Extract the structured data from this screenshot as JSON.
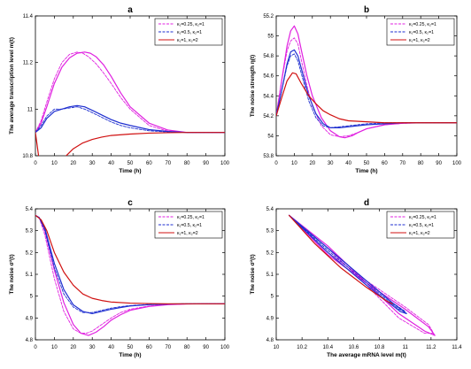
{
  "figure": {
    "legend_labels": [
      "κ₁=0.25, κ₂=1",
      "κ₁=0.5, κ₂=1",
      "κ₁=1, κ₂=2"
    ],
    "colors": {
      "magenta": "#e020e0",
      "blue": "#1f2fd0",
      "red": "#d01010"
    }
  },
  "chart_data": [
    {
      "type": "line",
      "panel_label": "a",
      "xlabel": "Time (h)",
      "ylabel": "The average transcription level m(t)",
      "xlim": [
        0,
        100
      ],
      "ylim": [
        10.8,
        11.4
      ],
      "xticks": [
        0,
        10,
        20,
        30,
        40,
        50,
        60,
        70,
        80,
        90,
        100
      ],
      "yticks": [
        10.8,
        11,
        11.2,
        11.4
      ],
      "ytick_labels": [
        "10.8",
        "11",
        "11.2",
        "11.4"
      ],
      "legend": "top-right",
      "series": [
        {
          "name": "κ₁=0.25, κ₂=1",
          "color": "magenta",
          "style": "dashed",
          "x": [
            0,
            3,
            6,
            10,
            14,
            18,
            22,
            25,
            28,
            32,
            36,
            40,
            45,
            50,
            60,
            70,
            80,
            90,
            100
          ],
          "y": [
            10.9,
            10.95,
            11.03,
            11.13,
            11.2,
            11.235,
            11.245,
            11.24,
            11.225,
            11.195,
            11.155,
            11.11,
            11.05,
            11.0,
            10.93,
            10.905,
            10.9,
            10.9,
            10.9
          ]
        },
        {
          "name": "κ₁=0.25, κ₂=1",
          "color": "magenta",
          "style": "solid",
          "x": [
            0,
            3,
            6,
            10,
            14,
            18,
            22,
            26,
            29,
            32,
            36,
            40,
            45,
            50,
            60,
            70,
            80,
            90,
            100
          ],
          "y": [
            10.9,
            10.94,
            11.01,
            11.11,
            11.18,
            11.22,
            11.24,
            11.245,
            11.24,
            11.225,
            11.19,
            11.14,
            11.07,
            11.01,
            10.94,
            10.91,
            10.9,
            10.9,
            10.9
          ]
        },
        {
          "name": "κ₁=0.5, κ₂=1",
          "color": "blue",
          "style": "dashed",
          "x": [
            0,
            3,
            6,
            10,
            14,
            18,
            22,
            26,
            30,
            35,
            40,
            45,
            50,
            60,
            70,
            80,
            90,
            100
          ],
          "y": [
            10.9,
            10.93,
            10.97,
            11.0,
            11.0,
            11.005,
            11.01,
            11.0,
            10.985,
            10.965,
            10.945,
            10.93,
            10.92,
            10.907,
            10.902,
            10.9,
            10.9,
            10.9
          ]
        },
        {
          "name": "κ₁=0.5, κ₂=1",
          "color": "blue",
          "style": "solid",
          "x": [
            0,
            3,
            6,
            10,
            14,
            18,
            22,
            26,
            30,
            35,
            40,
            45,
            50,
            60,
            70,
            80,
            90,
            100
          ],
          "y": [
            10.9,
            10.92,
            10.96,
            10.99,
            11.0,
            11.01,
            11.015,
            11.01,
            10.995,
            10.975,
            10.955,
            10.94,
            10.93,
            10.912,
            10.904,
            10.9,
            10.9,
            10.9
          ]
        },
        {
          "name": "κ₁=1, κ₂=2",
          "color": "red",
          "style": "solid",
          "x": [
            0,
            5,
            10,
            15,
            20,
            25,
            30,
            35,
            40,
            50,
            60,
            70,
            80,
            90,
            100
          ],
          "y": [
            10.9,
            10.6,
            10.72,
            10.79,
            10.83,
            10.855,
            10.87,
            10.88,
            10.887,
            10.893,
            10.897,
            10.899,
            10.9,
            10.9,
            10.9
          ]
        }
      ]
    },
    {
      "type": "line",
      "panel_label": "b",
      "xlabel": "Time (h)",
      "ylabel": "The noise strength η(t)",
      "xlim": [
        0,
        100
      ],
      "ylim": [
        53.8,
        55.2
      ],
      "xticks": [
        0,
        10,
        20,
        30,
        40,
        50,
        60,
        70,
        80,
        90,
        100
      ],
      "yticks": [
        53.8,
        54,
        54.2,
        54.4,
        54.6,
        54.8,
        55,
        55.2
      ],
      "ytick_labels": [
        "53.8",
        "54",
        "54.2",
        "54.4",
        "54.6",
        "54.8",
        "55",
        "55.2"
      ],
      "legend": "top-right",
      "series": [
        {
          "name": "κ₁=0.25, κ₂=1",
          "color": "magenta",
          "style": "dashed",
          "x": [
            0,
            3,
            6,
            8,
            10,
            12,
            14,
            17,
            20,
            25,
            30,
            35,
            40,
            45,
            50,
            60,
            70,
            80,
            90,
            100
          ],
          "y": [
            54.2,
            54.55,
            54.85,
            54.95,
            54.98,
            54.92,
            54.75,
            54.5,
            54.3,
            54.1,
            54.01,
            53.99,
            54.0,
            54.03,
            54.07,
            54.11,
            54.125,
            54.13,
            54.13,
            54.13
          ]
        },
        {
          "name": "κ₁=0.25, κ₂=1",
          "color": "magenta",
          "style": "solid",
          "x": [
            0,
            3,
            6,
            8,
            10,
            12,
            14,
            17,
            20,
            25,
            30,
            35,
            38,
            42,
            45,
            50,
            60,
            70,
            80,
            90,
            100
          ],
          "y": [
            54.2,
            54.55,
            54.9,
            55.05,
            55.1,
            55.02,
            54.85,
            54.6,
            54.4,
            54.18,
            54.05,
            53.99,
            53.98,
            54.0,
            54.03,
            54.07,
            54.11,
            54.125,
            54.13,
            54.13,
            54.13
          ]
        },
        {
          "name": "κ₁=0.5, κ₂=1",
          "color": "blue",
          "style": "dashed",
          "x": [
            0,
            3,
            6,
            8,
            10,
            12,
            15,
            18,
            22,
            26,
            30,
            35,
            40,
            50,
            60,
            70,
            80,
            90,
            100
          ],
          "y": [
            54.2,
            54.45,
            54.7,
            54.8,
            54.82,
            54.75,
            54.55,
            54.35,
            54.18,
            54.1,
            54.08,
            54.09,
            54.1,
            54.12,
            54.13,
            54.13,
            54.13,
            54.13,
            54.13
          ]
        },
        {
          "name": "κ₁=0.5, κ₂=1",
          "color": "blue",
          "style": "solid",
          "x": [
            0,
            3,
            6,
            8,
            10,
            12,
            15,
            18,
            22,
            26,
            30,
            35,
            40,
            50,
            60,
            70,
            80,
            90,
            100
          ],
          "y": [
            54.2,
            54.45,
            54.72,
            54.84,
            54.86,
            54.8,
            54.6,
            54.4,
            54.22,
            54.12,
            54.08,
            54.08,
            54.09,
            54.11,
            54.12,
            54.13,
            54.13,
            54.13,
            54.13
          ]
        },
        {
          "name": "κ₁=1, κ₂=2",
          "color": "red",
          "style": "solid",
          "x": [
            0,
            3,
            6,
            9,
            11,
            14,
            18,
            22,
            26,
            30,
            35,
            40,
            50,
            60,
            70,
            80,
            90,
            100
          ],
          "y": [
            54.2,
            54.38,
            54.55,
            54.63,
            54.62,
            54.52,
            54.4,
            54.32,
            54.25,
            54.21,
            54.17,
            54.15,
            54.14,
            54.13,
            54.13,
            54.13,
            54.13,
            54.13
          ]
        }
      ]
    },
    {
      "type": "line",
      "panel_label": "c",
      "xlabel": "Time (h)",
      "ylabel": "The noise σ²(t)",
      "xlim": [
        0,
        100
      ],
      "ylim": [
        4.8,
        5.4
      ],
      "xticks": [
        0,
        10,
        20,
        30,
        40,
        50,
        60,
        70,
        80,
        90,
        100
      ],
      "yticks": [
        4.8,
        4.9,
        5,
        5.1,
        5.2,
        5.3,
        5.4
      ],
      "ytick_labels": [
        "4.8",
        "4.9",
        "5",
        "5.1",
        "5.2",
        "5.3",
        "5.4"
      ],
      "legend": "top-right",
      "series": [
        {
          "name": "κ₁=0.25, κ₂=1",
          "color": "magenta",
          "style": "dashed",
          "x": [
            0,
            2,
            5,
            10,
            15,
            20,
            24,
            27,
            30,
            35,
            40,
            45,
            50,
            60,
            70,
            80,
            90,
            100
          ],
          "y": [
            5.37,
            5.36,
            5.28,
            5.08,
            4.93,
            4.85,
            4.83,
            4.83,
            4.84,
            4.87,
            4.9,
            4.925,
            4.94,
            4.955,
            4.962,
            4.964,
            4.965,
            4.965
          ]
        },
        {
          "name": "κ₁=0.25, κ₂=1",
          "color": "magenta",
          "style": "solid",
          "x": [
            0,
            2,
            5,
            10,
            15,
            20,
            24,
            28,
            32,
            36,
            40,
            45,
            50,
            60,
            70,
            80,
            90,
            100
          ],
          "y": [
            5.37,
            5.36,
            5.3,
            5.12,
            4.97,
            4.87,
            4.83,
            4.82,
            4.835,
            4.86,
            4.89,
            4.915,
            4.935,
            4.953,
            4.961,
            4.964,
            4.965,
            4.965
          ]
        },
        {
          "name": "κ₁=0.5, κ₂=1",
          "color": "blue",
          "style": "dashed",
          "x": [
            0,
            2,
            5,
            10,
            15,
            20,
            25,
            30,
            35,
            40,
            45,
            50,
            60,
            70,
            80,
            90,
            100
          ],
          "y": [
            5.37,
            5.36,
            5.3,
            5.13,
            5.01,
            4.95,
            4.925,
            4.925,
            4.935,
            4.945,
            4.952,
            4.957,
            4.962,
            4.964,
            4.965,
            4.965,
            4.965
          ]
        },
        {
          "name": "κ₁=0.5, κ₂=1",
          "color": "blue",
          "style": "solid",
          "x": [
            0,
            2,
            5,
            10,
            15,
            20,
            25,
            30,
            35,
            40,
            45,
            50,
            60,
            70,
            80,
            90,
            100
          ],
          "y": [
            5.37,
            5.36,
            5.31,
            5.15,
            5.03,
            4.96,
            4.93,
            4.92,
            4.93,
            4.94,
            4.948,
            4.955,
            4.961,
            4.964,
            4.965,
            4.965,
            4.965
          ]
        },
        {
          "name": "κ₁=1, κ₂=2",
          "color": "red",
          "style": "solid",
          "x": [
            0,
            3,
            6,
            10,
            15,
            20,
            25,
            30,
            35,
            40,
            50,
            60,
            70,
            80,
            90,
            100
          ],
          "y": [
            5.37,
            5.35,
            5.3,
            5.2,
            5.11,
            5.05,
            5.01,
            4.99,
            4.98,
            4.973,
            4.968,
            4.966,
            4.965,
            4.965,
            4.965,
            4.965
          ]
        }
      ]
    },
    {
      "type": "line",
      "panel_label": "d",
      "xlabel": "The average mRNA level m(t)",
      "ylabel": "The noise σ²(t)",
      "xlim": [
        10,
        11.4
      ],
      "ylim": [
        4.8,
        5.4
      ],
      "xticks": [
        10,
        10.2,
        10.4,
        10.6,
        10.8,
        11,
        11.2,
        11.4
      ],
      "xtick_labels": [
        "10",
        "10.2",
        "10.4",
        "10.6",
        "10.8",
        "11",
        "11.2",
        "11.4"
      ],
      "yticks": [
        4.8,
        4.9,
        5,
        5.1,
        5.2,
        5.3,
        5.4
      ],
      "ytick_labels": [
        "4.8",
        "4.9",
        "5",
        "5.1",
        "5.2",
        "5.3",
        "5.4"
      ],
      "legend": "top-right",
      "series": [
        {
          "name": "κ₁=0.25, κ₂=1",
          "color": "magenta",
          "style": "dashed",
          "x": [
            10.1,
            10.4,
            10.7,
            10.95,
            11.15,
            11.22,
            11.18,
            11.0,
            10.7,
            10.4,
            10.1
          ],
          "y": [
            5.37,
            5.22,
            5.05,
            4.9,
            4.83,
            4.83,
            4.87,
            4.95,
            5.07,
            5.2,
            5.37
          ]
        },
        {
          "name": "κ₁=0.25, κ₂=1",
          "color": "magenta",
          "style": "solid",
          "x": [
            10.1,
            10.4,
            10.7,
            10.95,
            11.15,
            11.23,
            11.18,
            11.0,
            10.7,
            10.4,
            10.1
          ],
          "y": [
            5.37,
            5.23,
            5.06,
            4.92,
            4.84,
            4.82,
            4.86,
            4.94,
            5.06,
            5.19,
            5.37
          ]
        },
        {
          "name": "κ₁=0.5, κ₂=1",
          "color": "blue",
          "style": "dashed",
          "x": [
            10.1,
            10.4,
            10.7,
            10.9,
            11.0,
            10.95,
            10.7,
            10.4,
            10.1
          ],
          "y": [
            5.37,
            5.22,
            5.07,
            4.97,
            4.93,
            4.94,
            5.06,
            5.21,
            5.37
          ]
        },
        {
          "name": "κ₁=0.5, κ₂=1",
          "color": "blue",
          "style": "solid",
          "x": [
            10.1,
            10.4,
            10.7,
            10.9,
            11.01,
            10.96,
            10.7,
            10.4,
            10.1
          ],
          "y": [
            5.37,
            5.22,
            5.07,
            4.97,
            4.92,
            4.93,
            5.05,
            5.2,
            5.37
          ]
        },
        {
          "name": "κ₁=1, κ₂=2",
          "color": "red",
          "style": "solid",
          "x": [
            10.1,
            10.3,
            10.5,
            10.7,
            10.85,
            10.9
          ],
          "y": [
            5.37,
            5.24,
            5.13,
            5.04,
            4.98,
            4.965
          ]
        }
      ]
    }
  ]
}
